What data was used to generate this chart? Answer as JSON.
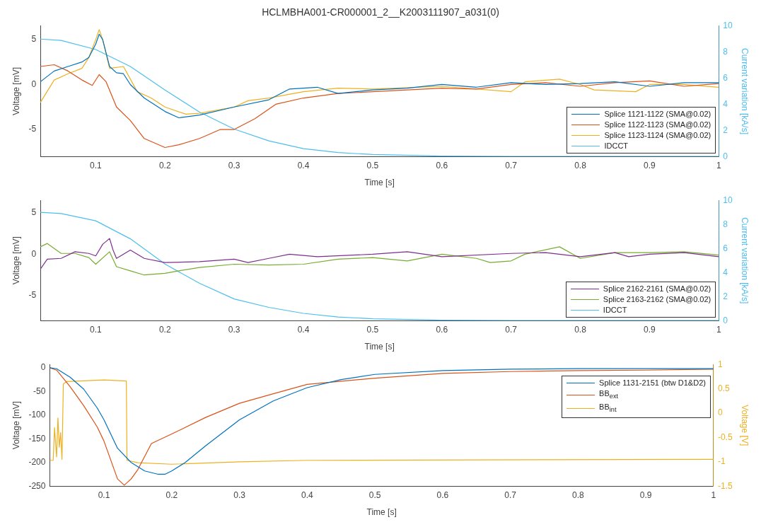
{
  "chart_data": [
    {
      "type": "line",
      "title": "HCLMBHA001-CR000001_2__K2003111907_a031(0)",
      "xlabel": "Time [s]",
      "ylabel": "Voltage [mV]",
      "y2label": "Current variation [kA/s]",
      "xlim": [
        0.02,
        1
      ],
      "xticks": [
        0.1,
        0.2,
        0.3,
        0.4,
        0.5,
        0.6,
        0.7,
        0.8,
        0.9,
        1
      ],
      "ylim": [
        -8,
        6.5
      ],
      "yticks": [
        -5,
        0,
        5
      ],
      "y2lim": [
        0,
        10
      ],
      "y2ticks": [
        0,
        2,
        4,
        6,
        8,
        10
      ],
      "grid": false,
      "legend": "bottom right",
      "marker": "none",
      "series": [
        {
          "name": "Splice 1121-1122 (SMA@0.02)",
          "color": "#0072bd",
          "x": [
            0.02,
            0.04,
            0.06,
            0.08,
            0.09,
            0.1,
            0.105,
            0.11,
            0.12,
            0.13,
            0.14,
            0.15,
            0.17,
            0.2,
            0.22,
            0.25,
            0.3,
            0.35,
            0.38,
            0.42,
            0.45,
            0.5,
            0.55,
            0.6,
            0.65,
            0.7,
            0.75,
            0.8,
            0.85,
            0.9,
            0.95,
            1
          ],
          "values": [
            0.3,
            1.5,
            2,
            2.5,
            3,
            4.5,
            5.6,
            5,
            2,
            1.3,
            1.2,
            0,
            -1.5,
            -3,
            -3.7,
            -3.4,
            -2.5,
            -1.7,
            -0.5,
            -0.3,
            -1,
            -0.6,
            -0.4,
            0,
            -0.3,
            0.2,
            0,
            0.1,
            0.3,
            -0.2,
            0.2,
            0.2
          ]
        },
        {
          "name": "Splice 1122-1123 (SMA@0.02)",
          "color": "#d95319",
          "x": [
            0.02,
            0.04,
            0.06,
            0.08,
            0.095,
            0.105,
            0.115,
            0.13,
            0.15,
            0.17,
            0.2,
            0.22,
            0.25,
            0.28,
            0.3,
            0.33,
            0.36,
            0.4,
            0.45,
            0.5,
            0.55,
            0.6,
            0.65,
            0.7,
            0.75,
            0.8,
            0.85,
            0.9,
            0.95,
            1
          ],
          "values": [
            2,
            2.2,
            1.5,
            0.5,
            -0.1,
            1.1,
            0.3,
            -2.5,
            -4,
            -6,
            -7,
            -6.7,
            -6,
            -5,
            -5,
            -3.8,
            -2.2,
            -1.5,
            -1,
            -0.8,
            -0.6,
            -0.4,
            -0.5,
            0,
            0.2,
            -0.2,
            0.2,
            0.4,
            -0.2,
            0.1
          ]
        },
        {
          "name": "Splice 1123-1124 (SMA@0.02)",
          "color": "#edb120",
          "x": [
            0.02,
            0.04,
            0.06,
            0.08,
            0.09,
            0.1,
            0.105,
            0.11,
            0.12,
            0.14,
            0.16,
            0.18,
            0.2,
            0.23,
            0.25,
            0.3,
            0.32,
            0.35,
            0.4,
            0.45,
            0.5,
            0.6,
            0.7,
            0.72,
            0.77,
            0.8,
            0.82,
            0.88,
            0.9,
            0.95,
            1
          ],
          "values": [
            -2,
            0.5,
            1.2,
            1.8,
            3,
            5,
            6.1,
            5,
            1.8,
            2,
            -0.8,
            -1.5,
            -2.5,
            -3.3,
            -3.2,
            -2.5,
            -1.8,
            -1.5,
            -0.8,
            -0.4,
            -0.5,
            -0.2,
            -0.8,
            0.3,
            0.6,
            0,
            -0.6,
            -0.8,
            0,
            0,
            -0.3
          ]
        },
        {
          "name": "IDCCT",
          "color": "#4dbeee",
          "axis": "y2",
          "x": [
            0.02,
            0.05,
            0.1,
            0.15,
            0.2,
            0.25,
            0.3,
            0.35,
            0.4,
            0.45,
            0.5,
            0.6,
            0.7,
            1
          ],
          "values": [
            9,
            8.9,
            8.2,
            6.9,
            5.1,
            3.4,
            2.1,
            1.2,
            0.6,
            0.3,
            0.15,
            0.03,
            0,
            0
          ]
        }
      ]
    },
    {
      "type": "line",
      "xlabel": "Time [s]",
      "ylabel": "Voltage [mV]",
      "y2label": "Current variation [kA/s]",
      "xlim": [
        0.02,
        1
      ],
      "xticks": [
        0.1,
        0.2,
        0.3,
        0.4,
        0.5,
        0.6,
        0.7,
        0.8,
        0.9,
        1
      ],
      "ylim": [
        -8,
        6.5
      ],
      "yticks": [
        -5,
        0,
        5
      ],
      "y2lim": [
        0,
        10
      ],
      "y2ticks": [
        0,
        2,
        4,
        6,
        8,
        10
      ],
      "grid": false,
      "legend": "bottom right",
      "marker": "none",
      "series": [
        {
          "name": "Splice 2162-2161 (SMA@0.02)",
          "color": "#7e2f8e",
          "x": [
            0.02,
            0.03,
            0.05,
            0.07,
            0.09,
            0.1,
            0.11,
            0.12,
            0.125,
            0.13,
            0.15,
            0.17,
            0.2,
            0.25,
            0.3,
            0.32,
            0.35,
            0.38,
            0.42,
            0.5,
            0.55,
            0.6,
            0.7,
            0.75,
            0.8,
            0.85,
            0.87,
            0.9,
            0.95,
            1
          ],
          "values": [
            -1.8,
            -0.6,
            -0.5,
            0.3,
            0.1,
            -0.2,
            1.2,
            1.9,
            0.5,
            -0.5,
            0.5,
            -0.5,
            -1,
            -0.9,
            -0.6,
            -1,
            -0.5,
            0,
            -0.3,
            0,
            0.3,
            -0.3,
            0.1,
            0.2,
            -0.3,
            0.2,
            -0.3,
            0,
            0.2,
            -0.3
          ]
        },
        {
          "name": "Splice 2163-2162 (SMA@0.02)",
          "color": "#77ac30",
          "x": [
            0.02,
            0.03,
            0.05,
            0.07,
            0.09,
            0.1,
            0.12,
            0.13,
            0.15,
            0.17,
            0.2,
            0.22,
            0.25,
            0.3,
            0.35,
            0.4,
            0.45,
            0.5,
            0.55,
            0.6,
            0.65,
            0.67,
            0.7,
            0.72,
            0.77,
            0.8,
            0.85,
            0.9,
            0.95,
            1
          ],
          "values": [
            0.9,
            1.3,
            0.1,
            0.1,
            -0.4,
            -1.2,
            0.3,
            -1.5,
            -2,
            -2.5,
            -2.3,
            -2,
            -1.6,
            -1.2,
            -1.3,
            -1.2,
            -0.6,
            -0.4,
            -0.8,
            0,
            -0.5,
            -1,
            -0.8,
            0,
            0.9,
            -0.5,
            0.2,
            0.2,
            0.3,
            -0.1
          ]
        },
        {
          "name": "IDCCT",
          "color": "#4dbeee",
          "axis": "y2",
          "x": [
            0.02,
            0.05,
            0.1,
            0.15,
            0.2,
            0.25,
            0.3,
            0.35,
            0.4,
            0.45,
            0.5,
            0.6,
            0.7,
            1
          ],
          "values": [
            9,
            8.9,
            8.3,
            6.8,
            4.7,
            3.1,
            1.8,
            1.1,
            0.6,
            0.3,
            0.15,
            0.03,
            0,
            0
          ]
        }
      ]
    },
    {
      "type": "line",
      "xlabel": "Time [s]",
      "ylabel": "Voltage [mV]",
      "y2label": "Voltage [V]",
      "xlim": [
        0.02,
        1
      ],
      "xticks": [
        0.1,
        0.2,
        0.3,
        0.4,
        0.5,
        0.6,
        0.7,
        0.8,
        0.9,
        1
      ],
      "ylim": [
        -250,
        7
      ],
      "yticks": [
        -250,
        -200,
        -150,
        -100,
        -50,
        0
      ],
      "y2lim": [
        -1.5,
        1
      ],
      "y2ticks": [
        -1.5,
        -1,
        -0.5,
        0,
        0.5,
        1
      ],
      "grid": false,
      "legend": "top right",
      "marker": "none",
      "series": [
        {
          "name": "Splice 1131-2151 (btw D1&D2)",
          "color": "#0072bd",
          "x": [
            0.02,
            0.03,
            0.05,
            0.07,
            0.09,
            0.1,
            0.12,
            0.14,
            0.16,
            0.18,
            0.19,
            0.2,
            0.22,
            0.25,
            0.3,
            0.35,
            0.4,
            0.45,
            0.5,
            0.6,
            0.7,
            0.8,
            0.9,
            1
          ],
          "values": [
            0,
            -2,
            -20,
            -45,
            -85,
            -110,
            -170,
            -200,
            -218,
            -225,
            -225,
            -218,
            -200,
            -165,
            -110,
            -70,
            -42,
            -25,
            -14,
            -6,
            -3,
            -2,
            -2,
            -2
          ]
        },
        {
          "name": "BB$_{ext}$",
          "color": "#d95319",
          "x": [
            0.02,
            0.03,
            0.05,
            0.07,
            0.09,
            0.1,
            0.11,
            0.12,
            0.13,
            0.14,
            0.15,
            0.17,
            0.2,
            0.25,
            0.3,
            0.35,
            0.4,
            0.5,
            0.6,
            0.7,
            0.8,
            0.9,
            1
          ],
          "values": [
            0,
            -5,
            -40,
            -80,
            -125,
            -155,
            -195,
            -235,
            -248,
            -235,
            -215,
            -160,
            -140,
            -105,
            -75,
            -55,
            -35,
            -22,
            -12,
            -8,
            -6,
            -5,
            -3
          ]
        },
        {
          "name": "BB$_{int}$",
          "color": "#edb120",
          "axis": "y2",
          "x": [
            0.02,
            0.025,
            0.027,
            0.03,
            0.032,
            0.034,
            0.036,
            0.038,
            0.04,
            0.045,
            0.1,
            0.133,
            0.134,
            0.15,
            0.2,
            0.3,
            0.4,
            1
          ],
          "values": [
            -0.97,
            -0.97,
            -0.3,
            -0.9,
            -0.1,
            -0.7,
            -0.4,
            -0.95,
            0.6,
            0.65,
            0.68,
            0.66,
            -0.97,
            -1.02,
            -1.05,
            -1.0,
            -0.97,
            -0.95
          ]
        }
      ]
    }
  ]
}
